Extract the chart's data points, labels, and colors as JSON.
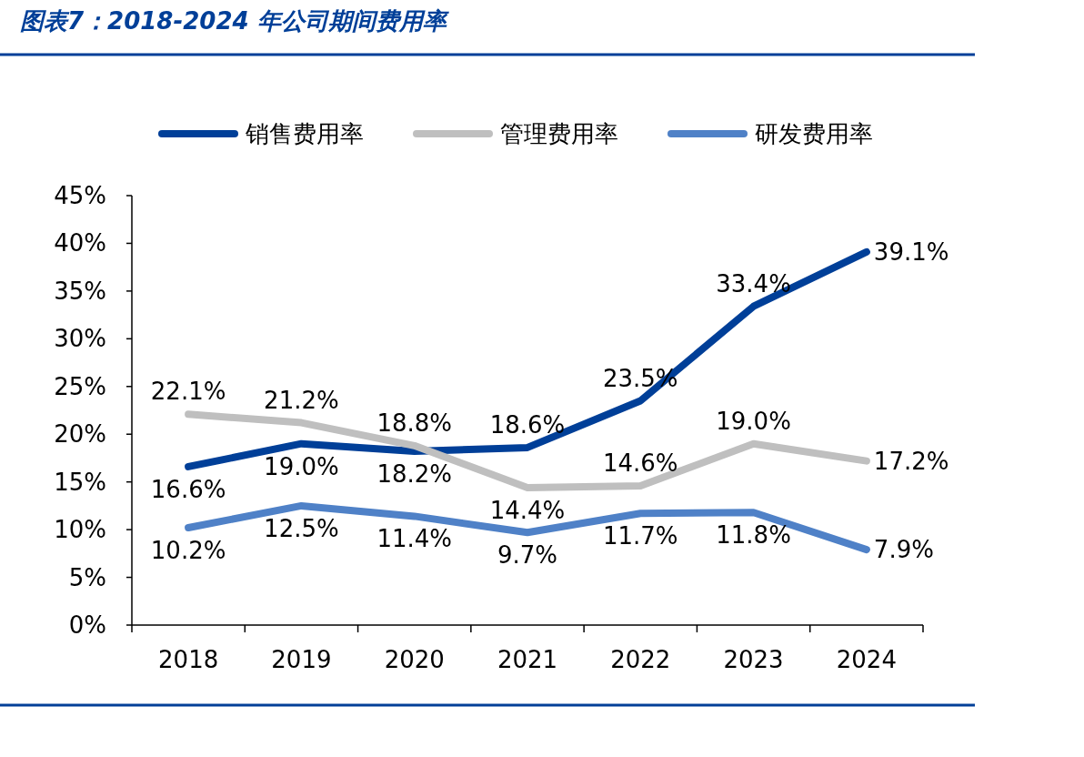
{
  "chart_data": {
    "type": "line",
    "title": "图表7：2018-2024 年公司期间费用率",
    "categories": [
      "2018",
      "2019",
      "2020",
      "2021",
      "2022",
      "2023",
      "2024"
    ],
    "series": [
      {
        "name": "销售费用率",
        "color": "#003f98",
        "values": [
          16.6,
          19.0,
          18.2,
          18.6,
          23.5,
          33.4,
          39.1
        ],
        "value_labels": [
          "16.6%",
          "19.0%",
          "18.2%",
          "18.6%",
          "23.5%",
          "33.4%",
          "39.1%"
        ]
      },
      {
        "name": "管理费用率",
        "color": "#bfbfbf",
        "values": [
          22.1,
          21.2,
          18.8,
          14.4,
          14.6,
          19.0,
          17.2
        ],
        "value_labels": [
          "22.1%",
          "21.2%",
          "18.8%",
          "14.4%",
          "14.6%",
          "19.0%",
          "17.2%"
        ]
      },
      {
        "name": "研发费用率",
        "color": "#4f81c7",
        "values": [
          10.2,
          12.5,
          11.4,
          9.7,
          11.7,
          11.8,
          7.9
        ],
        "value_labels": [
          "10.2%",
          "12.5%",
          "11.4%",
          "9.7%",
          "11.7%",
          "11.8%",
          "7.9%"
        ]
      }
    ],
    "ylim": [
      0,
      45
    ],
    "yticks": [
      {
        "value": 0,
        "label": "0%"
      },
      {
        "value": 5,
        "label": "5%"
      },
      {
        "value": 10,
        "label": "10%"
      },
      {
        "value": 15,
        "label": "15%"
      },
      {
        "value": 20,
        "label": "20%"
      },
      {
        "value": 25,
        "label": "25%"
      },
      {
        "value": 30,
        "label": "30%"
      },
      {
        "value": 35,
        "label": "35%"
      },
      {
        "value": 40,
        "label": "40%"
      },
      {
        "value": 45,
        "label": "45%"
      }
    ],
    "legend": "top",
    "grid": false,
    "marker": "none",
    "line_style": "solid"
  }
}
